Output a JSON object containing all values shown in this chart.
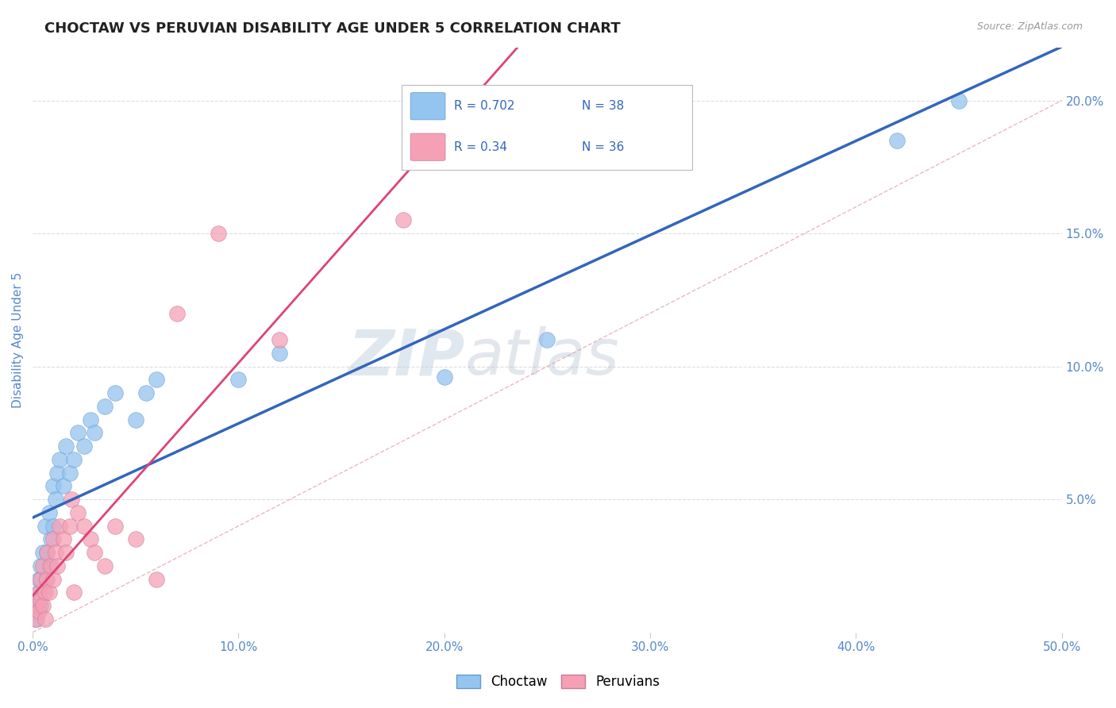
{
  "title": "CHOCTAW VS PERUVIAN DISABILITY AGE UNDER 5 CORRELATION CHART",
  "source_text": "Source: ZipAtlas.com",
  "ylabel": "Disability Age Under 5",
  "xlim": [
    0.0,
    0.5
  ],
  "ylim": [
    0.0,
    0.22
  ],
  "xticks": [
    0.0,
    0.1,
    0.2,
    0.3,
    0.4,
    0.5
  ],
  "xtick_labels": [
    "0.0%",
    "10.0%",
    "20.0%",
    "30.0%",
    "40.0%",
    "50.0%"
  ],
  "ytick_positions": [
    0.05,
    0.1,
    0.15,
    0.2
  ],
  "ytick_labels": [
    "5.0%",
    "10.0%",
    "15.0%",
    "20.0%"
  ],
  "choctaw_R": 0.702,
  "choctaw_N": 38,
  "peruvian_R": 0.34,
  "peruvian_N": 36,
  "choctaw_color": "#94C4F0",
  "choctaw_edge_color": "#6699CC",
  "choctaw_line_color": "#3366BB",
  "peruvian_color": "#F5A0B5",
  "peruvian_edge_color": "#CC7799",
  "peruvian_line_color": "#DD4477",
  "ref_line_color": "#DD8899",
  "watermark_color": "#CCDDEE",
  "background_color": "#FFFFFF",
  "grid_color": "#DDDDDD",
  "axis_color": "#5588CC",
  "title_color": "#222222",
  "legend_text_color": "#3366BB",
  "legend_n_color": "#3366BB",
  "choctaw_x": [
    0.001,
    0.002,
    0.003,
    0.003,
    0.004,
    0.004,
    0.005,
    0.005,
    0.006,
    0.006,
    0.007,
    0.008,
    0.008,
    0.009,
    0.01,
    0.01,
    0.011,
    0.012,
    0.013,
    0.015,
    0.016,
    0.018,
    0.02,
    0.022,
    0.025,
    0.028,
    0.03,
    0.035,
    0.04,
    0.05,
    0.055,
    0.06,
    0.1,
    0.12,
    0.2,
    0.25,
    0.42,
    0.45
  ],
  "choctaw_y": [
    0.01,
    0.005,
    0.015,
    0.02,
    0.01,
    0.025,
    0.015,
    0.03,
    0.02,
    0.04,
    0.03,
    0.025,
    0.045,
    0.035,
    0.04,
    0.055,
    0.05,
    0.06,
    0.065,
    0.055,
    0.07,
    0.06,
    0.065,
    0.075,
    0.07,
    0.08,
    0.075,
    0.085,
    0.09,
    0.08,
    0.09,
    0.095,
    0.095,
    0.105,
    0.096,
    0.11,
    0.185,
    0.2
  ],
  "peruvian_x": [
    0.001,
    0.002,
    0.003,
    0.003,
    0.004,
    0.004,
    0.005,
    0.005,
    0.006,
    0.006,
    0.007,
    0.007,
    0.008,
    0.009,
    0.01,
    0.01,
    0.011,
    0.012,
    0.013,
    0.015,
    0.016,
    0.018,
    0.019,
    0.02,
    0.022,
    0.025,
    0.028,
    0.03,
    0.035,
    0.04,
    0.05,
    0.06,
    0.07,
    0.09,
    0.12,
    0.18
  ],
  "peruvian_y": [
    0.005,
    0.01,
    0.008,
    0.015,
    0.012,
    0.02,
    0.01,
    0.025,
    0.015,
    0.005,
    0.02,
    0.03,
    0.015,
    0.025,
    0.02,
    0.035,
    0.03,
    0.025,
    0.04,
    0.035,
    0.03,
    0.04,
    0.05,
    0.015,
    0.045,
    0.04,
    0.035,
    0.03,
    0.025,
    0.04,
    0.035,
    0.02,
    0.12,
    0.15,
    0.11,
    0.155
  ]
}
